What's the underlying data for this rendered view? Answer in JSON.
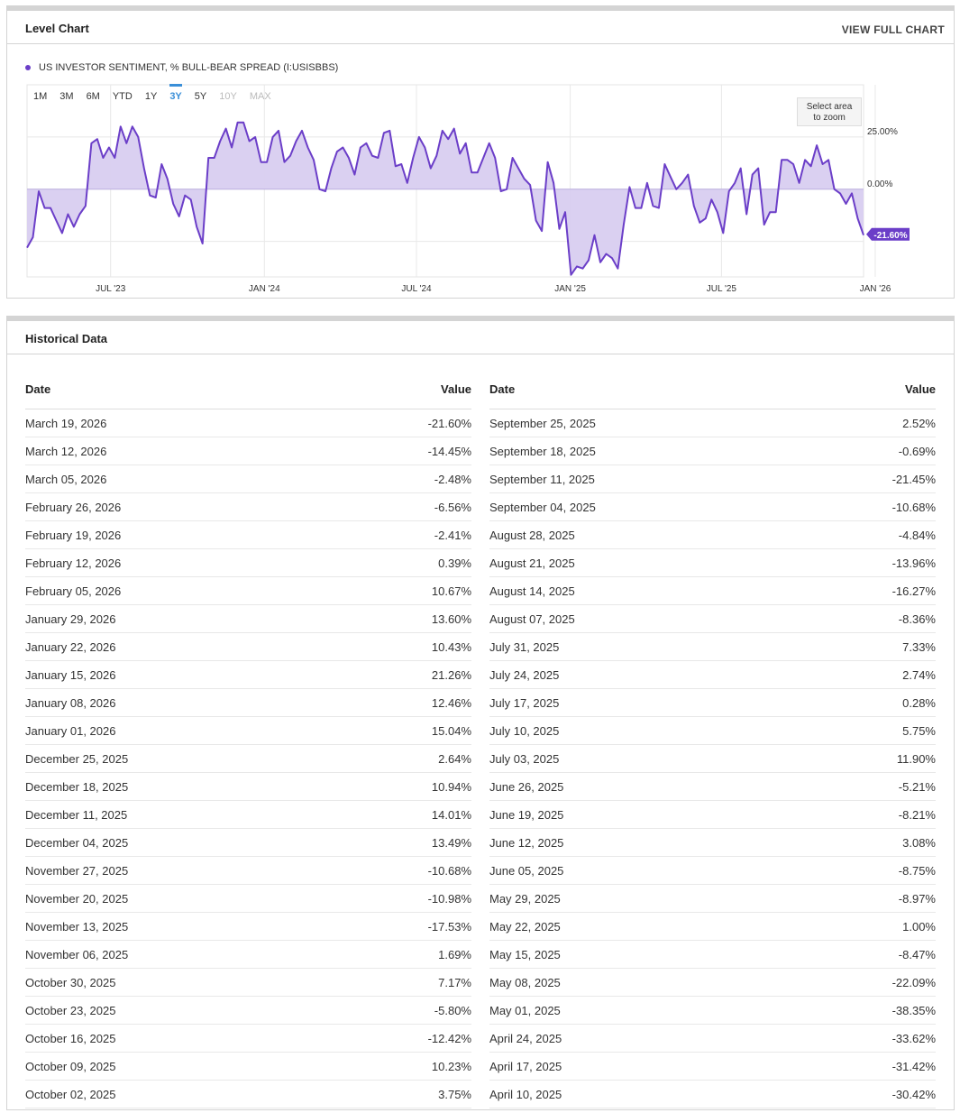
{
  "chart_panel": {
    "title": "Level Chart",
    "view_full": "VIEW FULL CHART",
    "legend": "US INVESTOR SENTIMENT, % BULL-BEAR SPREAD (I:USISBBS)",
    "ranges": [
      "1M",
      "3M",
      "6M",
      "YTD",
      "1Y",
      "3Y",
      "5Y",
      "10Y",
      "MAX"
    ],
    "active_range": "3Y",
    "disabled_ranges": [
      "10Y",
      "MAX"
    ],
    "zoom_hint_line1": "Select area",
    "zoom_hint_line2": "to zoom",
    "accent_color": "#6b3ec8",
    "fill_color": "#d8cdf0"
  },
  "chart_data": {
    "type": "area",
    "series": [
      {
        "name": "US INVESTOR SENTIMENT, % BULL-BEAR SPREAD (I:USISBBS)",
        "x_start": "2023-03-23",
        "interval_days": 7,
        "values": [
          -28,
          -23,
          -1,
          -9,
          -9,
          -15,
          -21,
          -12,
          -18,
          -12,
          -8,
          22,
          24,
          15,
          20,
          15,
          30,
          22,
          30,
          25,
          10,
          -3,
          -4,
          12,
          5,
          -7,
          -13,
          -3,
          -5,
          -18,
          -26,
          15,
          15,
          23,
          29,
          20,
          32,
          32,
          23,
          25,
          13,
          13,
          25,
          28,
          13,
          16,
          23,
          28,
          20,
          14,
          0,
          -1,
          10,
          18,
          20,
          15,
          7,
          20,
          22,
          16,
          15,
          27,
          28,
          11,
          12,
          3,
          15,
          25,
          20,
          10,
          16,
          28,
          24,
          29,
          17,
          22,
          8,
          8,
          15,
          22,
          15,
          -1,
          0,
          15,
          10,
          5,
          2,
          -15,
          -20,
          13,
          3,
          -19,
          -11,
          -41,
          -37,
          -38,
          -34,
          -22,
          -35,
          -31,
          -33,
          -38,
          -17,
          1,
          -9,
          -9,
          3,
          -8,
          -9,
          12,
          6,
          0,
          3,
          7,
          -8,
          -16,
          -14,
          -5,
          -11,
          -21,
          -1,
          3,
          10,
          -12,
          7,
          10,
          -17,
          -11,
          -11,
          14,
          14,
          12,
          3,
          14,
          11,
          21,
          12,
          14,
          0,
          -2,
          -7,
          -2,
          -14,
          -22
        ]
      }
    ],
    "x_tick_labels": [
      "JUL '23",
      "JAN '24",
      "JUL '24",
      "JAN '25",
      "JUL '25",
      "JAN '26"
    ],
    "x_tick_dates": [
      "2023-07-01",
      "2024-01-01",
      "2024-07-01",
      "2025-01-01",
      "2025-07-01",
      "2026-01-01"
    ],
    "y_tick_labels": [
      "25.00%",
      "0.00%"
    ],
    "y_tick_values": [
      25,
      0
    ],
    "ylim": [
      -42,
      50
    ],
    "last_value_label": "-21.60%",
    "last_value": -21.6,
    "grid": true
  },
  "history": {
    "title": "Historical Data",
    "col_date": "Date",
    "col_value": "Value",
    "left": [
      {
        "date": "March 19, 2026",
        "value": "-21.60%"
      },
      {
        "date": "March 12, 2026",
        "value": "-14.45%"
      },
      {
        "date": "March 05, 2026",
        "value": "-2.48%"
      },
      {
        "date": "February 26, 2026",
        "value": "-6.56%"
      },
      {
        "date": "February 19, 2026",
        "value": "-2.41%"
      },
      {
        "date": "February 12, 2026",
        "value": "0.39%"
      },
      {
        "date": "February 05, 2026",
        "value": "10.67%"
      },
      {
        "date": "January 29, 2026",
        "value": "13.60%"
      },
      {
        "date": "January 22, 2026",
        "value": "10.43%"
      },
      {
        "date": "January 15, 2026",
        "value": "21.26%"
      },
      {
        "date": "January 08, 2026",
        "value": "12.46%"
      },
      {
        "date": "January 01, 2026",
        "value": "15.04%"
      },
      {
        "date": "December 25, 2025",
        "value": "2.64%"
      },
      {
        "date": "December 18, 2025",
        "value": "10.94%"
      },
      {
        "date": "December 11, 2025",
        "value": "14.01%"
      },
      {
        "date": "December 04, 2025",
        "value": "13.49%"
      },
      {
        "date": "November 27, 2025",
        "value": "-10.68%"
      },
      {
        "date": "November 20, 2025",
        "value": "-10.98%"
      },
      {
        "date": "November 13, 2025",
        "value": "-17.53%"
      },
      {
        "date": "November 06, 2025",
        "value": "1.69%"
      },
      {
        "date": "October 30, 2025",
        "value": "7.17%"
      },
      {
        "date": "October 23, 2025",
        "value": "-5.80%"
      },
      {
        "date": "October 16, 2025",
        "value": "-12.42%"
      },
      {
        "date": "October 09, 2025",
        "value": "10.23%"
      },
      {
        "date": "October 02, 2025",
        "value": "3.75%"
      }
    ],
    "right": [
      {
        "date": "September 25, 2025",
        "value": "2.52%"
      },
      {
        "date": "September 18, 2025",
        "value": "-0.69%"
      },
      {
        "date": "September 11, 2025",
        "value": "-21.45%"
      },
      {
        "date": "September 04, 2025",
        "value": "-10.68%"
      },
      {
        "date": "August 28, 2025",
        "value": "-4.84%"
      },
      {
        "date": "August 21, 2025",
        "value": "-13.96%"
      },
      {
        "date": "August 14, 2025",
        "value": "-16.27%"
      },
      {
        "date": "August 07, 2025",
        "value": "-8.36%"
      },
      {
        "date": "July 31, 2025",
        "value": "7.33%"
      },
      {
        "date": "July 24, 2025",
        "value": "2.74%"
      },
      {
        "date": "July 17, 2025",
        "value": "0.28%"
      },
      {
        "date": "July 10, 2025",
        "value": "5.75%"
      },
      {
        "date": "July 03, 2025",
        "value": "11.90%"
      },
      {
        "date": "June 26, 2025",
        "value": "-5.21%"
      },
      {
        "date": "June 19, 2025",
        "value": "-8.21%"
      },
      {
        "date": "June 12, 2025",
        "value": "3.08%"
      },
      {
        "date": "June 05, 2025",
        "value": "-8.75%"
      },
      {
        "date": "May 29, 2025",
        "value": "-8.97%"
      },
      {
        "date": "May 22, 2025",
        "value": "1.00%"
      },
      {
        "date": "May 15, 2025",
        "value": "-8.47%"
      },
      {
        "date": "May 08, 2025",
        "value": "-22.09%"
      },
      {
        "date": "May 01, 2025",
        "value": "-38.35%"
      },
      {
        "date": "April 24, 2025",
        "value": "-33.62%"
      },
      {
        "date": "April 17, 2025",
        "value": "-31.42%"
      },
      {
        "date": "April 10, 2025",
        "value": "-30.42%"
      }
    ]
  }
}
